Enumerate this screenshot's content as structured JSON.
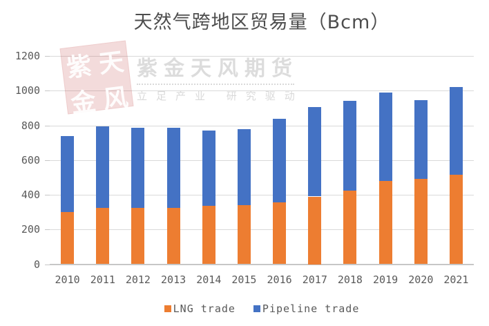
{
  "watermark": {
    "seal_chars": [
      "紫",
      "天",
      "金",
      "风"
    ],
    "brand_text": "紫金天风期货",
    "tagline": "立足产业 研究驱动",
    "seal_color": "#c14d4d",
    "text_color": "#dcdcdc"
  },
  "chart_data": {
    "type": "bar",
    "stacked": true,
    "title": "天然气跨地区贸易量（Bcm）",
    "categories": [
      "2010",
      "2011",
      "2012",
      "2013",
      "2014",
      "2015",
      "2016",
      "2017",
      "2018",
      "2019",
      "2020",
      "2021"
    ],
    "series": [
      {
        "name": "LNG trade",
        "color": "#ED7D31",
        "values": [
          300,
          325,
          325,
          325,
          335,
          340,
          355,
          390,
          425,
          480,
          490,
          515
        ]
      },
      {
        "name": "Pipeline trade",
        "color": "#4472C4",
        "values": [
          440,
          470,
          460,
          460,
          435,
          440,
          485,
          515,
          515,
          510,
          455,
          505
        ]
      }
    ],
    "totals": [
      740,
      795,
      785,
      785,
      770,
      780,
      840,
      905,
      940,
      990,
      945,
      1020
    ],
    "ylim": [
      0,
      1200
    ],
    "yticks": [
      0,
      200,
      400,
      600,
      800,
      1000,
      1200
    ],
    "grid": true,
    "legend_position": "bottom"
  },
  "colors": {
    "grid": "#d9d9d9",
    "axis": "#c6c6c6",
    "tick_text": "#595959",
    "title_text": "#4d4d4d"
  }
}
